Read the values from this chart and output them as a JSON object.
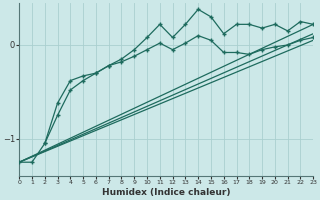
{
  "xlabel": "Humidex (Indice chaleur)",
  "ylabel": "",
  "bg_color": "#cce8e8",
  "line_color": "#1e6b5e",
  "grid_color": "#aacfcf",
  "ylim": [
    -1.4,
    0.45
  ],
  "xlim": [
    0,
    23
  ],
  "yticks": [
    0,
    -1
  ],
  "xticks": [
    0,
    1,
    2,
    3,
    4,
    5,
    6,
    7,
    8,
    9,
    10,
    11,
    12,
    13,
    14,
    15,
    16,
    17,
    18,
    19,
    20,
    21,
    22,
    23
  ],
  "series1_x": [
    0,
    1,
    2,
    3,
    4,
    5,
    6,
    7,
    8,
    9,
    10,
    11,
    12,
    13,
    14,
    15,
    16,
    17,
    18,
    19,
    20,
    21,
    22,
    23
  ],
  "series1_y": [
    -1.25,
    -1.25,
    -1.05,
    -0.62,
    -0.38,
    -0.33,
    -0.3,
    -0.22,
    -0.15,
    -0.05,
    0.08,
    0.22,
    0.08,
    0.22,
    0.38,
    0.3,
    0.12,
    0.22,
    0.22,
    0.18,
    0.22,
    0.15,
    0.25,
    0.22
  ],
  "series2_x": [
    2,
    3,
    4,
    5,
    6,
    7,
    8,
    9,
    10,
    11,
    12,
    13,
    14,
    15,
    16,
    17,
    18,
    19,
    20,
    21,
    22,
    23
  ],
  "series2_y": [
    -1.05,
    -0.75,
    -0.48,
    -0.38,
    -0.3,
    -0.22,
    -0.18,
    -0.12,
    -0.05,
    0.02,
    -0.05,
    0.02,
    0.1,
    0.05,
    -0.08,
    -0.08,
    -0.1,
    -0.05,
    -0.02,
    0.0,
    0.05,
    0.08
  ],
  "line3_x": [
    0,
    23
  ],
  "line3_y": [
    -1.25,
    0.12
  ],
  "line4_x": [
    0,
    23
  ],
  "line4_y": [
    -1.25,
    0.05
  ],
  "line5_x": [
    0,
    23
  ],
  "line5_y": [
    -1.25,
    0.22
  ]
}
